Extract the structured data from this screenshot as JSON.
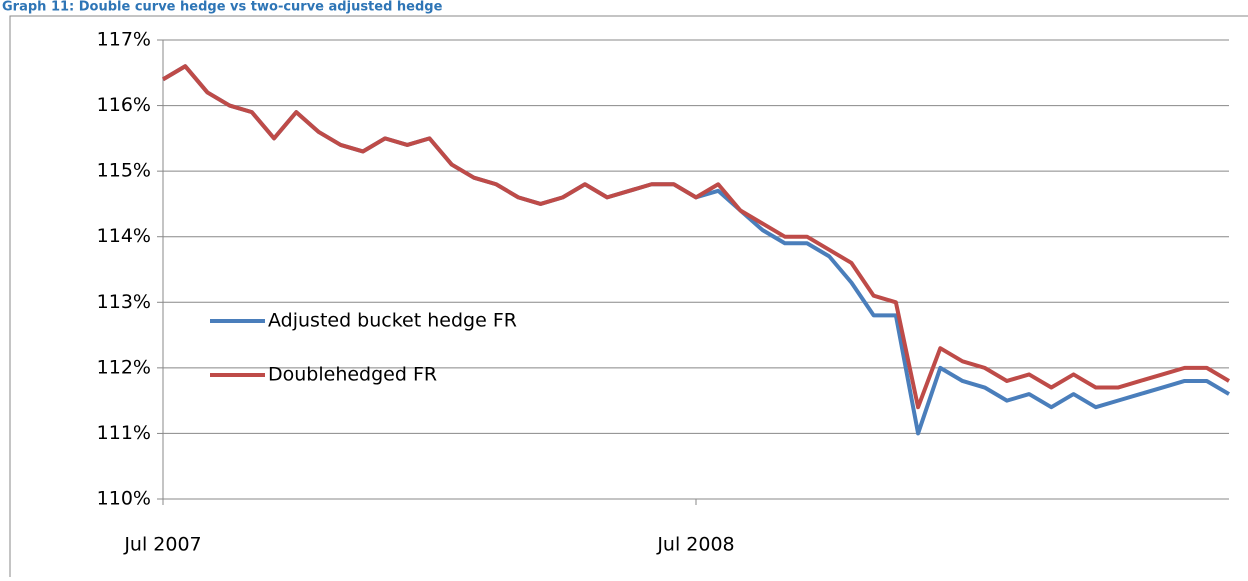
{
  "chart_data": {
    "type": "line",
    "title": "Graph 11: Double curve hedge vs two-curve adjusted hedge",
    "x": [
      0,
      0.5,
      1,
      1.5,
      2,
      2.5,
      3,
      3.5,
      4,
      4.5,
      5,
      5.5,
      6,
      6.5,
      7,
      7.5,
      8,
      8.5,
      9,
      9.5,
      10,
      10.5,
      11,
      11.5,
      12,
      12.5,
      13,
      13.5,
      14,
      14.5,
      15,
      15.5,
      16,
      16.5,
      17,
      17.5,
      18,
      18.5,
      19,
      19.5,
      20,
      20.5,
      21,
      21.5,
      22,
      22.5,
      23,
      23.5,
      24
    ],
    "xlim": [
      0,
      24
    ],
    "xticks": [
      {
        "value": 0,
        "label": "Jul 2007"
      },
      {
        "value": 12,
        "label": "Jul 2008"
      }
    ],
    "ylim": [
      110,
      117
    ],
    "yticks": [
      {
        "value": 110,
        "label": "110%"
      },
      {
        "value": 111,
        "label": "111%"
      },
      {
        "value": 112,
        "label": "112%"
      },
      {
        "value": 113,
        "label": "113%"
      },
      {
        "value": 114,
        "label": "114%"
      },
      {
        "value": 115,
        "label": "115%"
      },
      {
        "value": 116,
        "label": "116%"
      },
      {
        "value": 117,
        "label": "117%"
      }
    ],
    "grid": true,
    "series": [
      {
        "name": "Adjusted bucket hedge FR",
        "color": "#4a7ebb",
        "values": [
          116.4,
          116.6,
          116.2,
          116.0,
          115.9,
          115.5,
          115.9,
          115.6,
          115.4,
          115.3,
          115.5,
          115.4,
          115.5,
          115.1,
          114.9,
          114.8,
          114.6,
          114.5,
          114.6,
          114.8,
          114.6,
          114.7,
          114.8,
          114.8,
          114.6,
          114.7,
          114.4,
          114.1,
          113.9,
          113.9,
          113.7,
          113.3,
          112.8,
          112.8,
          111.0,
          112.0,
          111.8,
          111.7,
          111.5,
          111.6,
          111.4,
          111.6,
          111.4,
          111.5,
          111.6,
          111.7,
          111.8,
          111.8,
          111.6
        ]
      },
      {
        "name": "Doublehedged FR",
        "color": "#be4b48",
        "values": [
          116.4,
          116.6,
          116.2,
          116.0,
          115.9,
          115.5,
          115.9,
          115.6,
          115.4,
          115.3,
          115.5,
          115.4,
          115.5,
          115.1,
          114.9,
          114.8,
          114.6,
          114.5,
          114.6,
          114.8,
          114.6,
          114.7,
          114.8,
          114.8,
          114.6,
          114.8,
          114.4,
          114.2,
          114.0,
          114.0,
          113.8,
          113.6,
          113.1,
          113.0,
          111.4,
          112.3,
          112.1,
          112.0,
          111.8,
          111.9,
          111.7,
          111.9,
          111.7,
          111.7,
          111.8,
          111.9,
          112.0,
          112.0,
          111.8
        ]
      }
    ]
  }
}
